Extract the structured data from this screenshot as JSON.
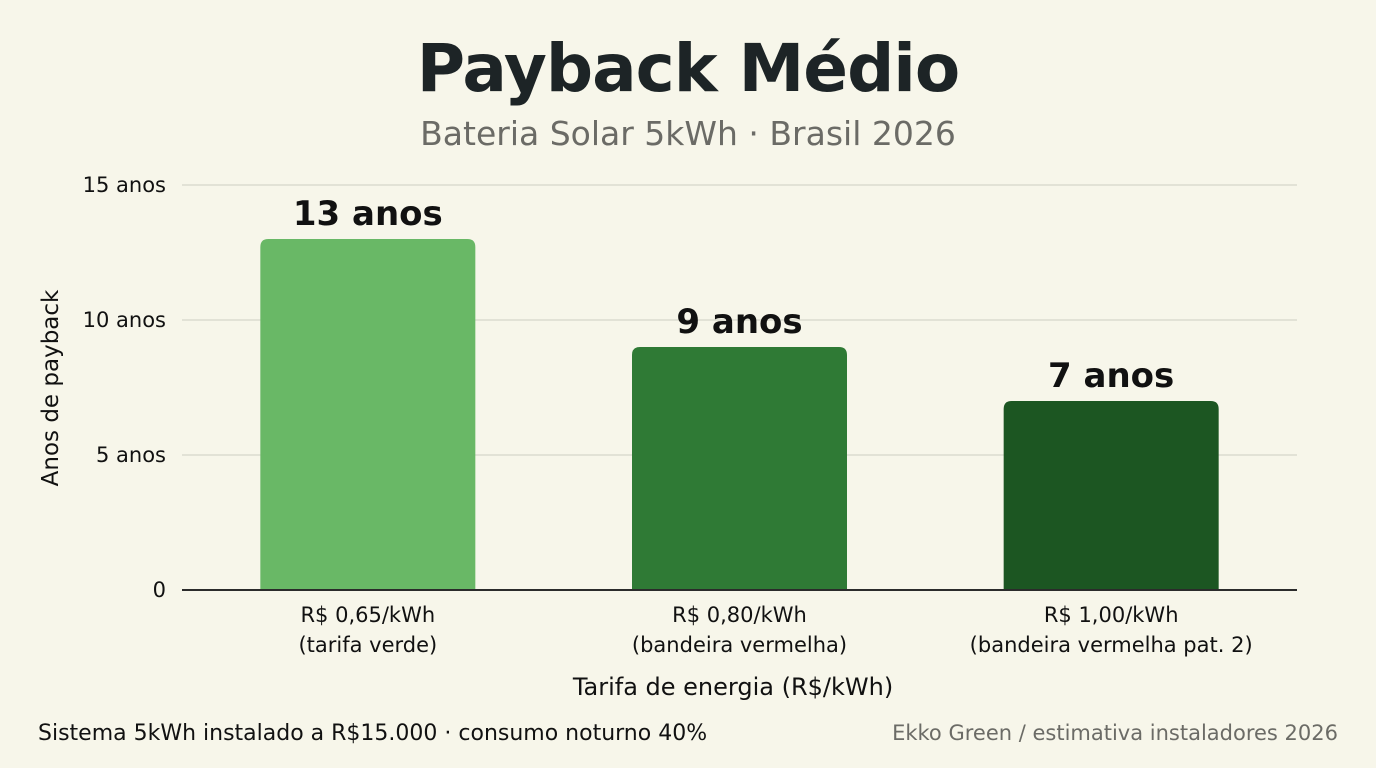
{
  "header": {
    "title": "Payback Médio",
    "subtitle": "Bateria Solar 5kWh · Brasil 2026"
  },
  "footer": {
    "note": "Sistema 5kWh instalado a R$15.000 · consumo noturno 40%",
    "source": "Ekko Green / estimativa instaladores 2026"
  },
  "chart_data": {
    "type": "bar",
    "categories": [
      [
        "R$ 0,65/kWh",
        "(tarifa verde)"
      ],
      [
        "R$ 0,80/kWh",
        "(bandeira vermelha)"
      ],
      [
        "R$ 1,00/kWh",
        "(bandeira vermelha pat. 2)"
      ]
    ],
    "values": [
      13,
      9,
      7
    ],
    "data_labels": [
      "13 anos",
      "9 anos",
      "7 anos"
    ],
    "colors": [
      "#69b866",
      "#2f7a35",
      "#1c5622"
    ],
    "xlabel": "Tarifa de energia (R$/kWh)",
    "ylabel": "Anos de payback",
    "ylim": [
      0,
      15
    ],
    "yticks": [
      {
        "value": 0,
        "label": "0"
      },
      {
        "value": 5,
        "label": "5 anos"
      },
      {
        "value": 10,
        "label": "10 anos"
      },
      {
        "value": 15,
        "label": "15 anos"
      }
    ],
    "grid": true,
    "gridColor": "#dcdccf",
    "axisColor": "#2b2b2b"
  }
}
